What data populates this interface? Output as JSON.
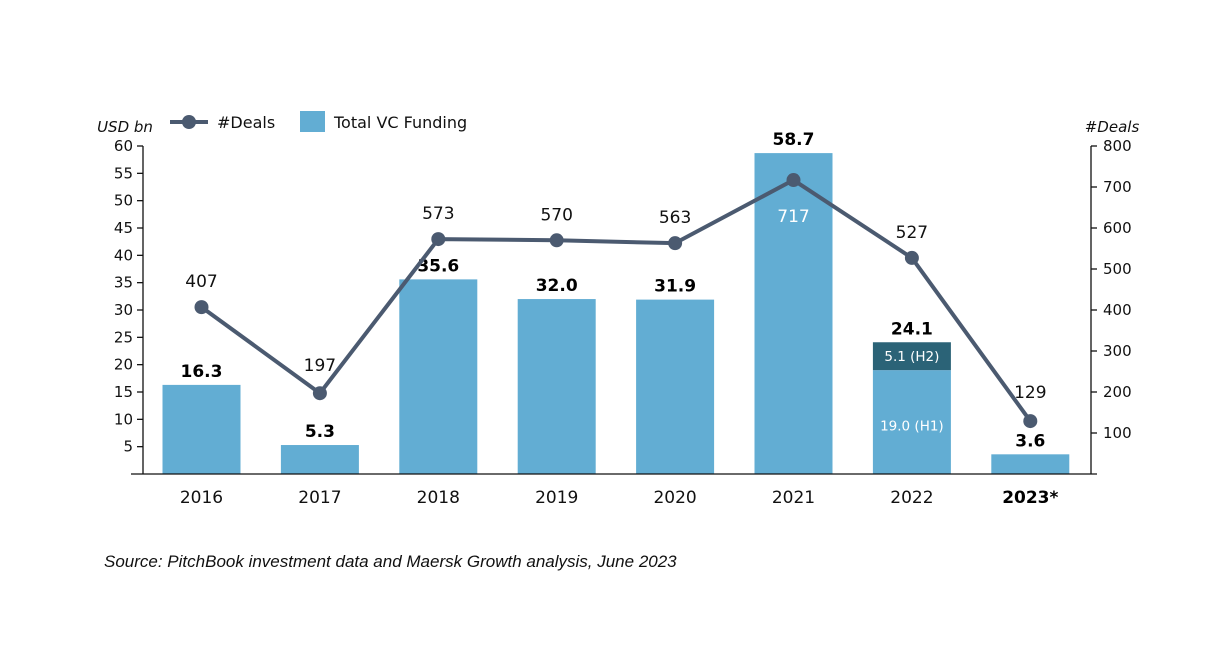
{
  "chart_data": {
    "type": "bar",
    "title": "",
    "categories": [
      "2016",
      "2017",
      "2018",
      "2019",
      "2020",
      "2021",
      "2022",
      "2023*"
    ],
    "bold_categories": [
      "2023*"
    ],
    "series": [
      {
        "name": "Total VC Funding",
        "kind": "bar",
        "axis": "left",
        "color": "#62add3",
        "values": [
          16.3,
          5.3,
          35.6,
          32.0,
          31.9,
          58.7,
          24.1,
          3.6
        ],
        "labels": [
          "16.3",
          "5.3",
          "35.6",
          "32.0",
          "31.9",
          "58.7",
          "24.1",
          "3.6"
        ]
      },
      {
        "name": "#Deals",
        "kind": "line",
        "axis": "right",
        "color": "#4b5a70",
        "values": [
          407,
          197,
          573,
          570,
          563,
          717,
          527,
          129
        ],
        "labels": [
          "407",
          "197",
          "573",
          "570",
          "563",
          "717",
          "527",
          "129"
        ]
      }
    ],
    "stacked_breakdown": {
      "category": "2022",
      "segments": [
        {
          "name": "H1",
          "value": 19.0,
          "label": "19.0 (H1)",
          "color": "#62add3"
        },
        {
          "name": "H2",
          "value": 5.1,
          "label": "5.1 (H2)",
          "color": "#2b6377"
        }
      ]
    },
    "left_axis": {
      "label": "USD bn",
      "range": [
        0,
        60
      ],
      "ticks": [
        5,
        10,
        15,
        20,
        25,
        30,
        35,
        40,
        45,
        50,
        55,
        60
      ]
    },
    "right_axis": {
      "label": "#Deals",
      "range": [
        0,
        800
      ],
      "ticks": [
        100,
        200,
        300,
        400,
        500,
        600,
        700,
        800
      ]
    },
    "xlabel": "",
    "grid": false,
    "legend": {
      "placement": "top-left",
      "entries": [
        {
          "label": "#Deals",
          "type": "line-marker",
          "color": "#4b5a70"
        },
        {
          "label": "Total VC Funding",
          "type": "box",
          "color": "#62add3"
        }
      ]
    }
  },
  "footer": {
    "source": "Source: PitchBook investment data and Maersk Growth analysis, June 2023"
  }
}
